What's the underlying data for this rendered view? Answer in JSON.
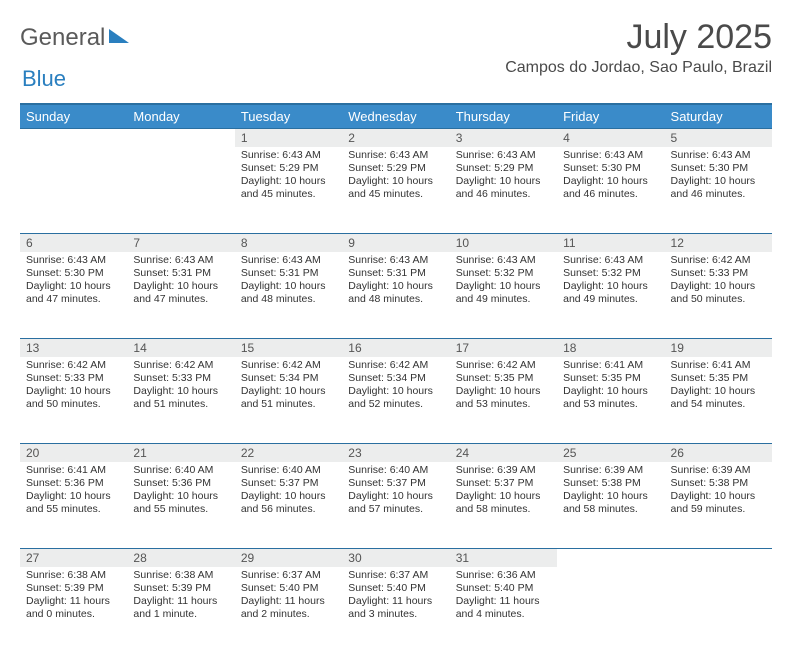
{
  "brand": {
    "part1": "General",
    "part2": "Blue"
  },
  "title": "July 2025",
  "location": "Campos do Jordao, Sao Paulo, Brazil",
  "colors": {
    "header_bg": "#3a8bc9",
    "header_border": "#2a6fa0",
    "daynum_bg": "#eceded",
    "text": "#333333",
    "brand_gray": "#5a5a5a",
    "brand_blue": "#2a7fbf"
  },
  "weekdays": [
    "Sunday",
    "Monday",
    "Tuesday",
    "Wednesday",
    "Thursday",
    "Friday",
    "Saturday"
  ],
  "weeks": [
    [
      {
        "n": "",
        "sr": "",
        "ss": "",
        "dl": ""
      },
      {
        "n": "",
        "sr": "",
        "ss": "",
        "dl": ""
      },
      {
        "n": "1",
        "sr": "Sunrise: 6:43 AM",
        "ss": "Sunset: 5:29 PM",
        "dl": "Daylight: 10 hours and 45 minutes."
      },
      {
        "n": "2",
        "sr": "Sunrise: 6:43 AM",
        "ss": "Sunset: 5:29 PM",
        "dl": "Daylight: 10 hours and 45 minutes."
      },
      {
        "n": "3",
        "sr": "Sunrise: 6:43 AM",
        "ss": "Sunset: 5:29 PM",
        "dl": "Daylight: 10 hours and 46 minutes."
      },
      {
        "n": "4",
        "sr": "Sunrise: 6:43 AM",
        "ss": "Sunset: 5:30 PM",
        "dl": "Daylight: 10 hours and 46 minutes."
      },
      {
        "n": "5",
        "sr": "Sunrise: 6:43 AM",
        "ss": "Sunset: 5:30 PM",
        "dl": "Daylight: 10 hours and 46 minutes."
      }
    ],
    [
      {
        "n": "6",
        "sr": "Sunrise: 6:43 AM",
        "ss": "Sunset: 5:30 PM",
        "dl": "Daylight: 10 hours and 47 minutes."
      },
      {
        "n": "7",
        "sr": "Sunrise: 6:43 AM",
        "ss": "Sunset: 5:31 PM",
        "dl": "Daylight: 10 hours and 47 minutes."
      },
      {
        "n": "8",
        "sr": "Sunrise: 6:43 AM",
        "ss": "Sunset: 5:31 PM",
        "dl": "Daylight: 10 hours and 48 minutes."
      },
      {
        "n": "9",
        "sr": "Sunrise: 6:43 AM",
        "ss": "Sunset: 5:31 PM",
        "dl": "Daylight: 10 hours and 48 minutes."
      },
      {
        "n": "10",
        "sr": "Sunrise: 6:43 AM",
        "ss": "Sunset: 5:32 PM",
        "dl": "Daylight: 10 hours and 49 minutes."
      },
      {
        "n": "11",
        "sr": "Sunrise: 6:43 AM",
        "ss": "Sunset: 5:32 PM",
        "dl": "Daylight: 10 hours and 49 minutes."
      },
      {
        "n": "12",
        "sr": "Sunrise: 6:42 AM",
        "ss": "Sunset: 5:33 PM",
        "dl": "Daylight: 10 hours and 50 minutes."
      }
    ],
    [
      {
        "n": "13",
        "sr": "Sunrise: 6:42 AM",
        "ss": "Sunset: 5:33 PM",
        "dl": "Daylight: 10 hours and 50 minutes."
      },
      {
        "n": "14",
        "sr": "Sunrise: 6:42 AM",
        "ss": "Sunset: 5:33 PM",
        "dl": "Daylight: 10 hours and 51 minutes."
      },
      {
        "n": "15",
        "sr": "Sunrise: 6:42 AM",
        "ss": "Sunset: 5:34 PM",
        "dl": "Daylight: 10 hours and 51 minutes."
      },
      {
        "n": "16",
        "sr": "Sunrise: 6:42 AM",
        "ss": "Sunset: 5:34 PM",
        "dl": "Daylight: 10 hours and 52 minutes."
      },
      {
        "n": "17",
        "sr": "Sunrise: 6:42 AM",
        "ss": "Sunset: 5:35 PM",
        "dl": "Daylight: 10 hours and 53 minutes."
      },
      {
        "n": "18",
        "sr": "Sunrise: 6:41 AM",
        "ss": "Sunset: 5:35 PM",
        "dl": "Daylight: 10 hours and 53 minutes."
      },
      {
        "n": "19",
        "sr": "Sunrise: 6:41 AM",
        "ss": "Sunset: 5:35 PM",
        "dl": "Daylight: 10 hours and 54 minutes."
      }
    ],
    [
      {
        "n": "20",
        "sr": "Sunrise: 6:41 AM",
        "ss": "Sunset: 5:36 PM",
        "dl": "Daylight: 10 hours and 55 minutes."
      },
      {
        "n": "21",
        "sr": "Sunrise: 6:40 AM",
        "ss": "Sunset: 5:36 PM",
        "dl": "Daylight: 10 hours and 55 minutes."
      },
      {
        "n": "22",
        "sr": "Sunrise: 6:40 AM",
        "ss": "Sunset: 5:37 PM",
        "dl": "Daylight: 10 hours and 56 minutes."
      },
      {
        "n": "23",
        "sr": "Sunrise: 6:40 AM",
        "ss": "Sunset: 5:37 PM",
        "dl": "Daylight: 10 hours and 57 minutes."
      },
      {
        "n": "24",
        "sr": "Sunrise: 6:39 AM",
        "ss": "Sunset: 5:37 PM",
        "dl": "Daylight: 10 hours and 58 minutes."
      },
      {
        "n": "25",
        "sr": "Sunrise: 6:39 AM",
        "ss": "Sunset: 5:38 PM",
        "dl": "Daylight: 10 hours and 58 minutes."
      },
      {
        "n": "26",
        "sr": "Sunrise: 6:39 AM",
        "ss": "Sunset: 5:38 PM",
        "dl": "Daylight: 10 hours and 59 minutes."
      }
    ],
    [
      {
        "n": "27",
        "sr": "Sunrise: 6:38 AM",
        "ss": "Sunset: 5:39 PM",
        "dl": "Daylight: 11 hours and 0 minutes."
      },
      {
        "n": "28",
        "sr": "Sunrise: 6:38 AM",
        "ss": "Sunset: 5:39 PM",
        "dl": "Daylight: 11 hours and 1 minute."
      },
      {
        "n": "29",
        "sr": "Sunrise: 6:37 AM",
        "ss": "Sunset: 5:40 PM",
        "dl": "Daylight: 11 hours and 2 minutes."
      },
      {
        "n": "30",
        "sr": "Sunrise: 6:37 AM",
        "ss": "Sunset: 5:40 PM",
        "dl": "Daylight: 11 hours and 3 minutes."
      },
      {
        "n": "31",
        "sr": "Sunrise: 6:36 AM",
        "ss": "Sunset: 5:40 PM",
        "dl": "Daylight: 11 hours and 4 minutes."
      },
      {
        "n": "",
        "sr": "",
        "ss": "",
        "dl": ""
      },
      {
        "n": "",
        "sr": "",
        "ss": "",
        "dl": ""
      }
    ]
  ]
}
